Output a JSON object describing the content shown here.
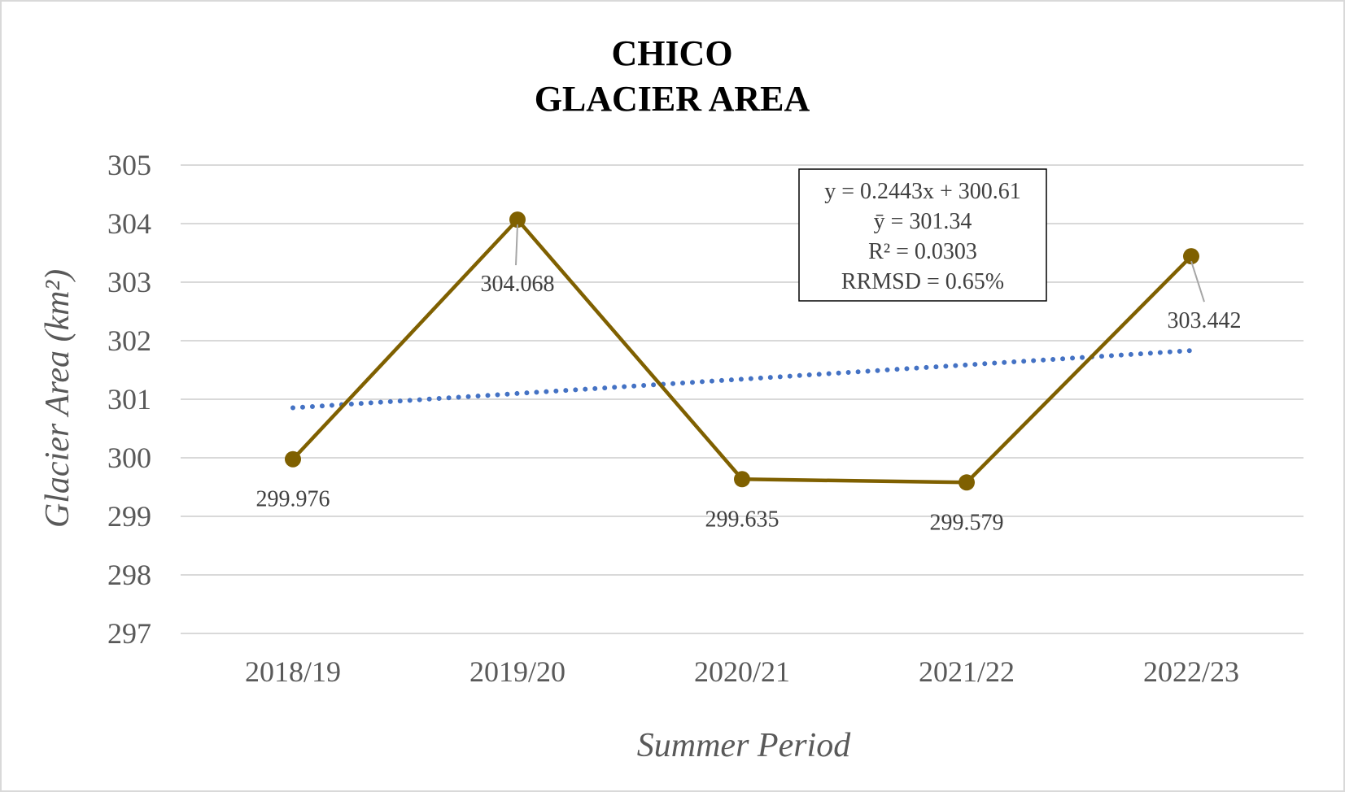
{
  "chart_data": {
    "type": "line",
    "title_line1": "CHICO",
    "title_line2": "GLACIER AREA",
    "xlabel": "Summer Period",
    "ylabel": "Glacier Area (km²)",
    "categories": [
      "2018/19",
      "2019/20",
      "2020/21",
      "2021/22",
      "2022/23"
    ],
    "series": [
      {
        "values": [
          299.976,
          304.068,
          299.635,
          299.579,
          303.442
        ],
        "color": "#7F6000"
      }
    ],
    "data_labels": [
      "299.976",
      "304.068",
      "299.635",
      "299.579",
      "303.442"
    ],
    "trendline": {
      "style": "dotted",
      "color": "#4472C4",
      "slope": 0.2443,
      "intercept": 300.61
    },
    "stats_box": [
      "y = 0.2443x + 300.61",
      "ȳ = 301.34",
      "R² = 0.0303",
      "RRMSD = 0.65%"
    ],
    "ylim": [
      297,
      305
    ],
    "yticks": [
      "297",
      "298",
      "299",
      "300",
      "301",
      "302",
      "303",
      "304",
      "305"
    ],
    "grid": true,
    "legend": "none",
    "colors": {
      "line": "#7F6000",
      "trend": "#4472C4",
      "grid": "#D9D9D9",
      "text": "#595959"
    }
  }
}
